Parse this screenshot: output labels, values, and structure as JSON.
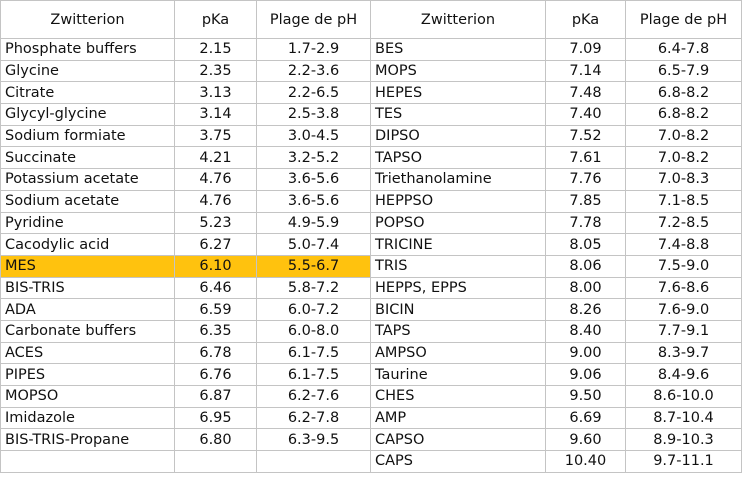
{
  "headers": [
    "Zwitterion",
    "pKa",
    "Plage de pH",
    "Zwitterion",
    "pKa",
    "Plage de pH"
  ],
  "highlight_color": "#ffc20e",
  "highlighted_left_row": 10,
  "rows": [
    {
      "left": [
        "Phosphate buffers",
        "2.15",
        "1.7-2.9"
      ],
      "right": [
        "BES",
        "7.09",
        "6.4-7.8"
      ]
    },
    {
      "left": [
        "Glycine",
        "2.35",
        "2.2-3.6"
      ],
      "right": [
        "MOPS",
        "7.14",
        "6.5-7.9"
      ]
    },
    {
      "left": [
        "Citrate",
        "3.13",
        "2.2-6.5"
      ],
      "right": [
        "HEPES",
        "7.48",
        "6.8-8.2"
      ]
    },
    {
      "left": [
        "Glycyl-glycine",
        "3.14",
        "2.5-3.8"
      ],
      "right": [
        "TES",
        "7.40",
        "6.8-8.2"
      ]
    },
    {
      "left": [
        "Sodium formiate",
        "3.75",
        "3.0-4.5"
      ],
      "right": [
        "DIPSO",
        "7.52",
        "7.0-8.2"
      ]
    },
    {
      "left": [
        "Succinate",
        "4.21",
        "3.2-5.2"
      ],
      "right": [
        "TAPSO",
        "7.61",
        "7.0-8.2"
      ]
    },
    {
      "left": [
        "Potassium acetate",
        "4.76",
        "3.6-5.6"
      ],
      "right": [
        "Triethanolamine",
        "7.76",
        "7.0-8.3"
      ]
    },
    {
      "left": [
        "Sodium acetate",
        "4.76",
        "3.6-5.6"
      ],
      "right": [
        "HEPPSO",
        "7.85",
        "7.1-8.5"
      ]
    },
    {
      "left": [
        "Pyridine",
        "5.23",
        "4.9-5.9"
      ],
      "right": [
        "POPSO",
        "7.78",
        "7.2-8.5"
      ]
    },
    {
      "left": [
        "Cacodylic acid",
        "6.27",
        "5.0-7.4"
      ],
      "right": [
        "TRICINE",
        "8.05",
        "7.4-8.8"
      ]
    },
    {
      "left": [
        "MES",
        "6.10",
        "5.5-6.7"
      ],
      "right": [
        "TRIS",
        "8.06",
        "7.5-9.0"
      ]
    },
    {
      "left": [
        "BIS-TRIS",
        "6.46",
        "5.8-7.2"
      ],
      "right": [
        "HEPPS, EPPS",
        "8.00",
        "7.6-8.6"
      ]
    },
    {
      "left": [
        "ADA",
        "6.59",
        "6.0-7.2"
      ],
      "right": [
        "BICIN",
        "8.26",
        "7.6-9.0"
      ]
    },
    {
      "left": [
        "Carbonate buffers",
        "6.35",
        "6.0-8.0"
      ],
      "right": [
        "TAPS",
        "8.40",
        "7.7-9.1"
      ]
    },
    {
      "left": [
        "ACES",
        "6.78",
        "6.1-7.5"
      ],
      "right": [
        "AMPSO",
        "9.00",
        "8.3-9.7"
      ]
    },
    {
      "left": [
        "PIPES",
        "6.76",
        "6.1-7.5"
      ],
      "right": [
        "Taurine",
        "9.06",
        "8.4-9.6"
      ]
    },
    {
      "left": [
        "MOPSO",
        "6.87",
        "6.2-7.6"
      ],
      "right": [
        "CHES",
        "9.50",
        "8.6-10.0"
      ]
    },
    {
      "left": [
        "Imidazole",
        "6.95",
        "6.2-7.8"
      ],
      "right": [
        "AMP",
        "6.69",
        "8.7-10.4"
      ]
    },
    {
      "left": [
        "BIS-TRIS-Propane",
        "6.80",
        "6.3-9.5"
      ],
      "right": [
        "CAPSO",
        "9.60",
        "8.9-10.3"
      ]
    },
    {
      "left": [
        "",
        "",
        ""
      ],
      "right": [
        "CAPS",
        "10.40",
        "9.7-11.1"
      ]
    }
  ]
}
